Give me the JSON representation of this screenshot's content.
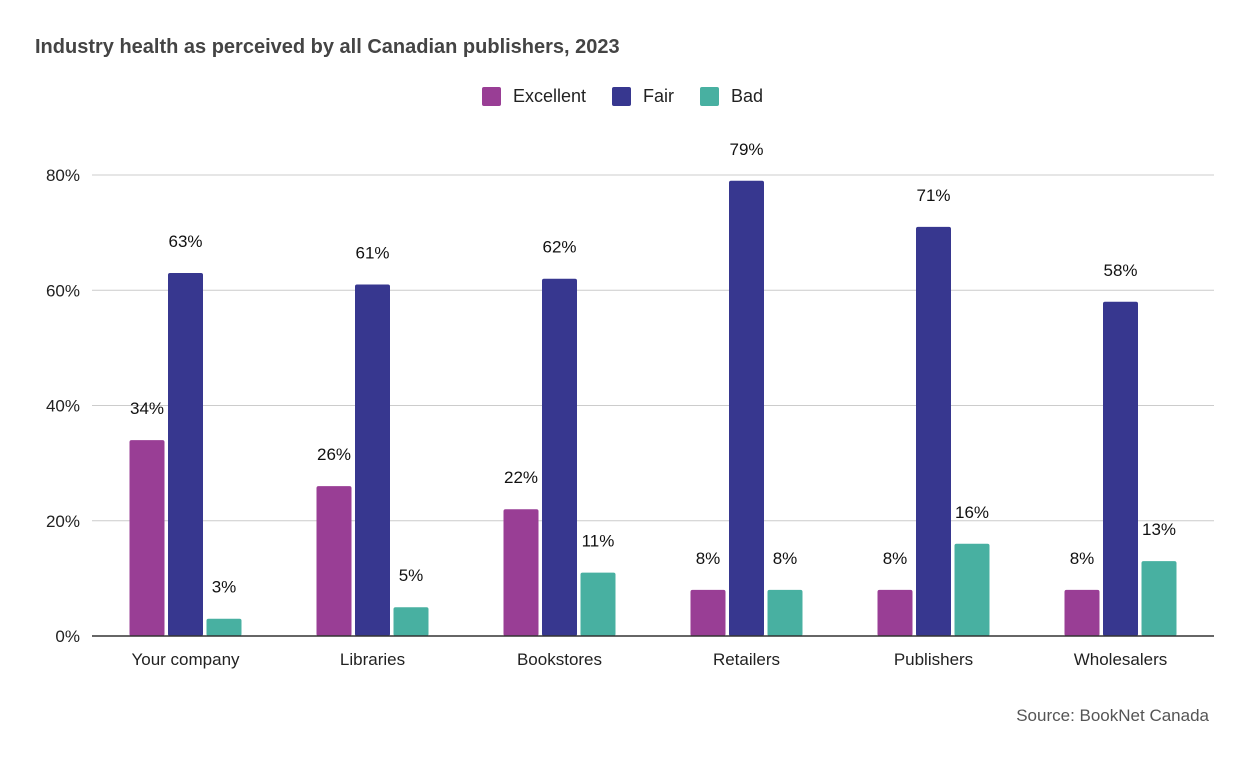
{
  "chart_data": {
    "type": "bar",
    "title": "Industry health as perceived by all Canadian publishers, 2023",
    "categories": [
      "Your company",
      "Libraries",
      "Bookstores",
      "Retailers",
      "Publishers",
      "Wholesalers"
    ],
    "series": [
      {
        "name": "Excellent",
        "color": "#993e95",
        "values": [
          34,
          26,
          22,
          8,
          8,
          8
        ]
      },
      {
        "name": "Fair",
        "color": "#37378f",
        "values": [
          63,
          61,
          62,
          79,
          71,
          58
        ]
      },
      {
        "name": "Bad",
        "color": "#48b0a1",
        "values": [
          3,
          5,
          11,
          8,
          16,
          13
        ]
      }
    ],
    "value_labels": [
      [
        "34%",
        "26%",
        "22%",
        "8%",
        "8%",
        "8%"
      ],
      [
        "63%",
        "61%",
        "62%",
        "79%",
        "71%",
        "58%"
      ],
      [
        "3%",
        "5%",
        "11%",
        "8%",
        "16%",
        "13%"
      ]
    ],
    "y_ticks": [
      0,
      20,
      40,
      60,
      80
    ],
    "y_tick_labels": [
      "0%",
      "20%",
      "40%",
      "60%",
      "80%"
    ],
    "ylim": [
      0,
      80
    ],
    "grid": true,
    "legend_position": "top-center",
    "source": "Source: BookNet Canada"
  }
}
